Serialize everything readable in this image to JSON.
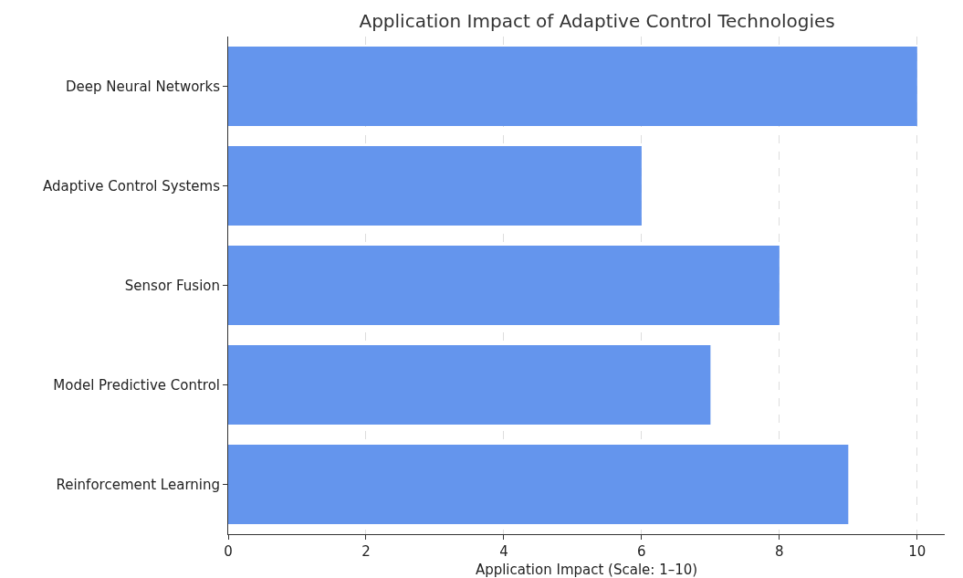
{
  "chart_data": {
    "type": "bar",
    "orientation": "horizontal",
    "title": "Application Impact of Adaptive Control Technologies",
    "xlabel": "Application Impact (Scale: 1–10)",
    "categories": [
      "Deep Neural Networks",
      "Adaptive Control Systems",
      "Sensor Fusion",
      "Model Predictive Control",
      "Reinforcement Learning"
    ],
    "values": [
      10,
      6,
      8,
      7,
      9
    ],
    "color": "#6495ed",
    "xlim": [
      0,
      10.4
    ],
    "xticks": [
      0,
      2,
      4,
      6,
      8,
      10
    ],
    "grid": "x"
  }
}
